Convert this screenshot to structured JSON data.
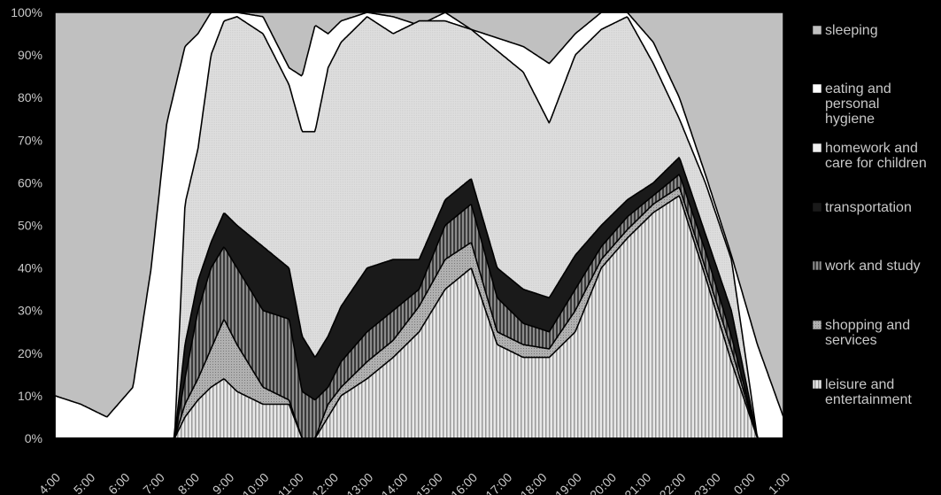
{
  "chart_data": {
    "type": "area",
    "stacked": true,
    "normalized": true,
    "title": "",
    "xlabel": "",
    "ylabel": "",
    "ylim": [
      0,
      100
    ],
    "yticks": [
      "0%",
      "10%",
      "20%",
      "30%",
      "40%",
      "50%",
      "60%",
      "70%",
      "80%",
      "90%",
      "100%"
    ],
    "xticks": [
      "4:00",
      "5:00",
      "6:00",
      "7:00",
      "8:00",
      "9:00",
      "10:00",
      "11:00",
      "12:00",
      "13:00",
      "14:00",
      "15:00",
      "16:00",
      "17:00",
      "18:00",
      "19:00",
      "20:00",
      "21:00",
      "22:00",
      "23:00",
      "0:00",
      "1:00"
    ],
    "legend_position": "right",
    "x_start": "4:00",
    "x_end": "1:00",
    "cumulative": {
      "leisure": [
        [
          0,
          0
        ],
        [
          4.6,
          0
        ],
        [
          5,
          5
        ],
        [
          5.5,
          9
        ],
        [
          6,
          12
        ],
        [
          6.5,
          14
        ],
        [
          7,
          11
        ],
        [
          8,
          8
        ],
        [
          9,
          8
        ],
        [
          9.5,
          0
        ],
        [
          10,
          0
        ],
        [
          10.5,
          5
        ],
        [
          11,
          10
        ],
        [
          12,
          14
        ],
        [
          13,
          19
        ],
        [
          14,
          25
        ],
        [
          15,
          35
        ],
        [
          16,
          40
        ],
        [
          17,
          22
        ],
        [
          18,
          19
        ],
        [
          19,
          19
        ],
        [
          20,
          25
        ],
        [
          21,
          40
        ],
        [
          22,
          47
        ],
        [
          23,
          53
        ],
        [
          24,
          57
        ],
        [
          25,
          38
        ],
        [
          26,
          18
        ],
        [
          27,
          0
        ]
      ],
      "shopping": [
        [
          0,
          0
        ],
        [
          4.6,
          0
        ],
        [
          5,
          8
        ],
        [
          5.5,
          14
        ],
        [
          6,
          21
        ],
        [
          6.5,
          28
        ],
        [
          7,
          22
        ],
        [
          8,
          12
        ],
        [
          9,
          9
        ],
        [
          9.5,
          0
        ],
        [
          10,
          0
        ],
        [
          10.5,
          8
        ],
        [
          11,
          12
        ],
        [
          12,
          18
        ],
        [
          13,
          23
        ],
        [
          14,
          31
        ],
        [
          15,
          42
        ],
        [
          16,
          46
        ],
        [
          17,
          25
        ],
        [
          18,
          22
        ],
        [
          19,
          21
        ],
        [
          20,
          30
        ],
        [
          21,
          42
        ],
        [
          22,
          49
        ],
        [
          23,
          55
        ],
        [
          24,
          59
        ],
        [
          25,
          40
        ],
        [
          26,
          21
        ],
        [
          27,
          0
        ]
      ],
      "work": [
        [
          0,
          0
        ],
        [
          4.6,
          0
        ],
        [
          5,
          14
        ],
        [
          5.5,
          30
        ],
        [
          6,
          40
        ],
        [
          6.5,
          45
        ],
        [
          7,
          40
        ],
        [
          8,
          30
        ],
        [
          9,
          28
        ],
        [
          9.5,
          11
        ],
        [
          10,
          9
        ],
        [
          10.5,
          12
        ],
        [
          11,
          18
        ],
        [
          12,
          25
        ],
        [
          13,
          30
        ],
        [
          14,
          35
        ],
        [
          15,
          50
        ],
        [
          16,
          55
        ],
        [
          17,
          33
        ],
        [
          18,
          27
        ],
        [
          19,
          25
        ],
        [
          20,
          35
        ],
        [
          21,
          45
        ],
        [
          22,
          52
        ],
        [
          23,
          57
        ],
        [
          24,
          62
        ],
        [
          25,
          44
        ],
        [
          26,
          24
        ],
        [
          27,
          0
        ]
      ],
      "transport": [
        [
          0,
          0
        ],
        [
          4.6,
          0
        ],
        [
          5,
          22
        ],
        [
          5.5,
          37
        ],
        [
          6,
          46
        ],
        [
          6.5,
          53
        ],
        [
          7,
          50
        ],
        [
          8,
          45
        ],
        [
          9,
          40
        ],
        [
          9.5,
          24
        ],
        [
          10,
          19
        ],
        [
          10.5,
          24
        ],
        [
          11,
          31
        ],
        [
          12,
          40
        ],
        [
          13,
          42
        ],
        [
          14,
          42
        ],
        [
          15,
          56
        ],
        [
          16,
          61
        ],
        [
          17,
          40
        ],
        [
          18,
          35
        ],
        [
          19,
          33
        ],
        [
          20,
          43
        ],
        [
          21,
          50
        ],
        [
          22,
          56
        ],
        [
          23,
          60
        ],
        [
          24,
          66
        ],
        [
          25,
          48
        ],
        [
          26,
          30
        ],
        [
          27,
          0
        ]
      ],
      "homework": [
        [
          0,
          0
        ],
        [
          4.6,
          0
        ],
        [
          5,
          55
        ],
        [
          5.5,
          68
        ],
        [
          6,
          90
        ],
        [
          6.5,
          98
        ],
        [
          7,
          99
        ],
        [
          8,
          95
        ],
        [
          9,
          83
        ],
        [
          9.5,
          72
        ],
        [
          10,
          72
        ],
        [
          10.5,
          87
        ],
        [
          11,
          93
        ],
        [
          12,
          99
        ],
        [
          13,
          95
        ],
        [
          14,
          98
        ],
        [
          15,
          98
        ],
        [
          16,
          96
        ],
        [
          17,
          91
        ],
        [
          18,
          86
        ],
        [
          19,
          74
        ],
        [
          20,
          90
        ],
        [
          21,
          96
        ],
        [
          22,
          99
        ],
        [
          23,
          88
        ],
        [
          24,
          75
        ],
        [
          25,
          60
        ],
        [
          26,
          42
        ],
        [
          27,
          0
        ]
      ],
      "eating": [
        [
          0,
          10
        ],
        [
          1,
          8
        ],
        [
          2,
          5
        ],
        [
          3,
          12
        ],
        [
          3.7,
          40
        ],
        [
          4.3,
          74
        ],
        [
          5,
          92
        ],
        [
          5.5,
          95
        ],
        [
          6,
          100
        ],
        [
          6.5,
          100
        ],
        [
          7,
          100
        ],
        [
          8,
          99
        ],
        [
          9,
          87
        ],
        [
          9.5,
          85
        ],
        [
          10,
          97
        ],
        [
          10.5,
          95
        ],
        [
          11,
          98
        ],
        [
          12,
          100
        ],
        [
          13,
          99
        ],
        [
          14,
          97
        ],
        [
          15,
          100
        ],
        [
          16,
          96
        ],
        [
          17,
          94
        ],
        [
          18,
          92
        ],
        [
          19,
          88
        ],
        [
          20,
          95
        ],
        [
          21,
          100
        ],
        [
          22,
          100
        ],
        [
          23,
          93
        ],
        [
          24,
          80
        ],
        [
          25,
          62
        ],
        [
          26,
          43
        ],
        [
          27,
          22
        ],
        [
          28,
          5
        ]
      ]
    },
    "series": [
      {
        "name": "sleeping",
        "color": "#c0c0c0"
      },
      {
        "name": "eating and personal hygiene",
        "color": "#ffffff"
      },
      {
        "name": "homework and care for children",
        "color": "#dcdcdc"
      },
      {
        "name": "transportation",
        "color": "#1a1a1a"
      },
      {
        "name": "work and study",
        "color": "#7a7a7a"
      },
      {
        "name": "shopping and services",
        "color": "#a8a8a8"
      },
      {
        "name": "leisure and entertainment",
        "color": "#e6e6e6"
      }
    ]
  }
}
